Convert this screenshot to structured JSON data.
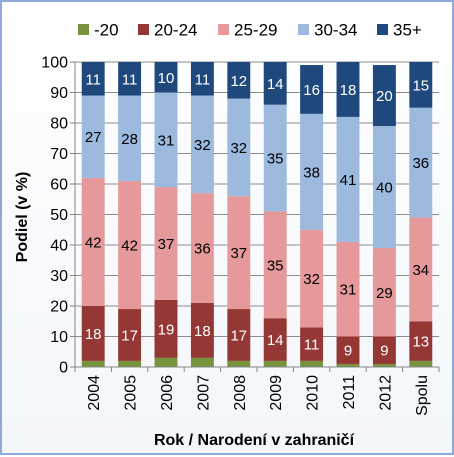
{
  "chart_data": {
    "type": "bar",
    "stacked": true,
    "xlabel": "Rok / Narodení v zahraničí",
    "ylabel": "Podiel (v %)",
    "ylim": [
      0,
      100
    ],
    "yticks": [
      0,
      10,
      20,
      30,
      40,
      50,
      60,
      70,
      80,
      90,
      100
    ],
    "grid": true,
    "legend_position": "top",
    "categories": [
      "2004",
      "2005",
      "2006",
      "2007",
      "2008",
      "2009",
      "2010",
      "2011",
      "2012",
      "Spolu"
    ],
    "series": [
      {
        "name": "-20",
        "color": "#77933c",
        "label_color": "#ffffff",
        "values": [
          2,
          2,
          3,
          3,
          2,
          2,
          2,
          1,
          1,
          2
        ]
      },
      {
        "name": "20-24",
        "color": "#953735",
        "label_color": "#ffffff",
        "values": [
          18,
          17,
          19,
          18,
          17,
          14,
          11,
          9,
          9,
          13
        ]
      },
      {
        "name": "25-29",
        "color": "#e6999a",
        "label_color": "#000000",
        "values": [
          42,
          42,
          37,
          36,
          37,
          35,
          32,
          31,
          29,
          34
        ]
      },
      {
        "name": "30-34",
        "color": "#9cb9de",
        "label_color": "#000000",
        "values": [
          27,
          28,
          31,
          32,
          32,
          35,
          38,
          41,
          40,
          36
        ]
      },
      {
        "name": "35+",
        "color": "#1f497d",
        "label_color": "#ffffff",
        "values": [
          11,
          11,
          10,
          11,
          12,
          14,
          16,
          18,
          20,
          15
        ]
      }
    ],
    "data_labels": {
      "-20": [
        null,
        null,
        null,
        null,
        null,
        null,
        null,
        null,
        null,
        null
      ],
      "20-24": [
        "18",
        "17",
        "19",
        "18",
        "17",
        "14",
        "11",
        "9",
        "9",
        "13"
      ],
      "25-29": [
        "42",
        "42",
        "37",
        "36",
        "37",
        "35",
        "32",
        "31",
        "29",
        "34"
      ],
      "30-34": [
        "27",
        "28",
        "31",
        "32",
        "32",
        "35",
        "38",
        "41",
        "40",
        "36"
      ],
      "35+": [
        "11",
        "11",
        "10",
        "11",
        "12",
        "14",
        "16",
        "18",
        "20",
        "15"
      ]
    }
  }
}
